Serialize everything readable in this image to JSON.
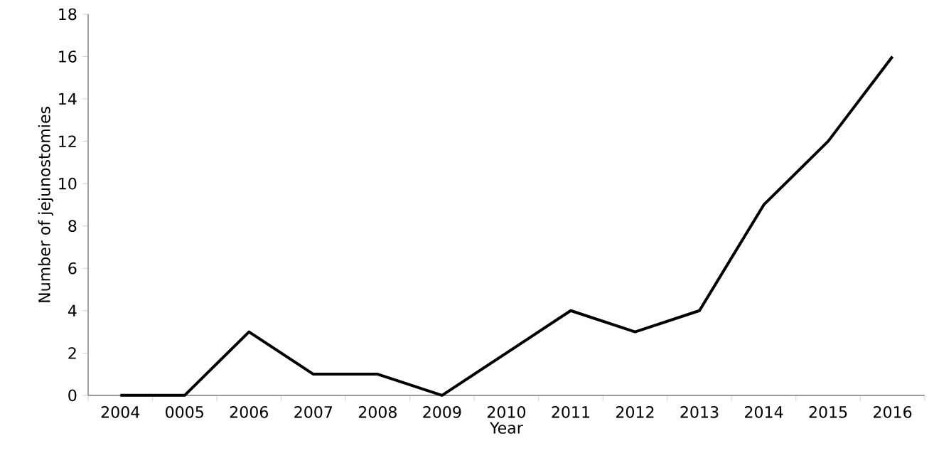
{
  "chart_data": {
    "type": "line",
    "xlabel": "Year",
    "ylabel": "Number of jejunostomies",
    "categories": [
      "2004",
      "0005",
      "2006",
      "2007",
      "2008",
      "2009",
      "2010",
      "2011",
      "2012",
      "2013",
      "2014",
      "2015",
      "2016"
    ],
    "series": [
      {
        "color": "#000000",
        "values": [
          0,
          0,
          3,
          1,
          1,
          0,
          2,
          4,
          3,
          4,
          9,
          12,
          16
        ]
      }
    ],
    "ylim": [
      0,
      18
    ],
    "yticks": [
      0,
      2,
      4,
      6,
      8,
      10,
      12,
      14,
      16,
      18
    ],
    "grid": false,
    "legend": false,
    "marker": "none",
    "line_style": "solid"
  }
}
